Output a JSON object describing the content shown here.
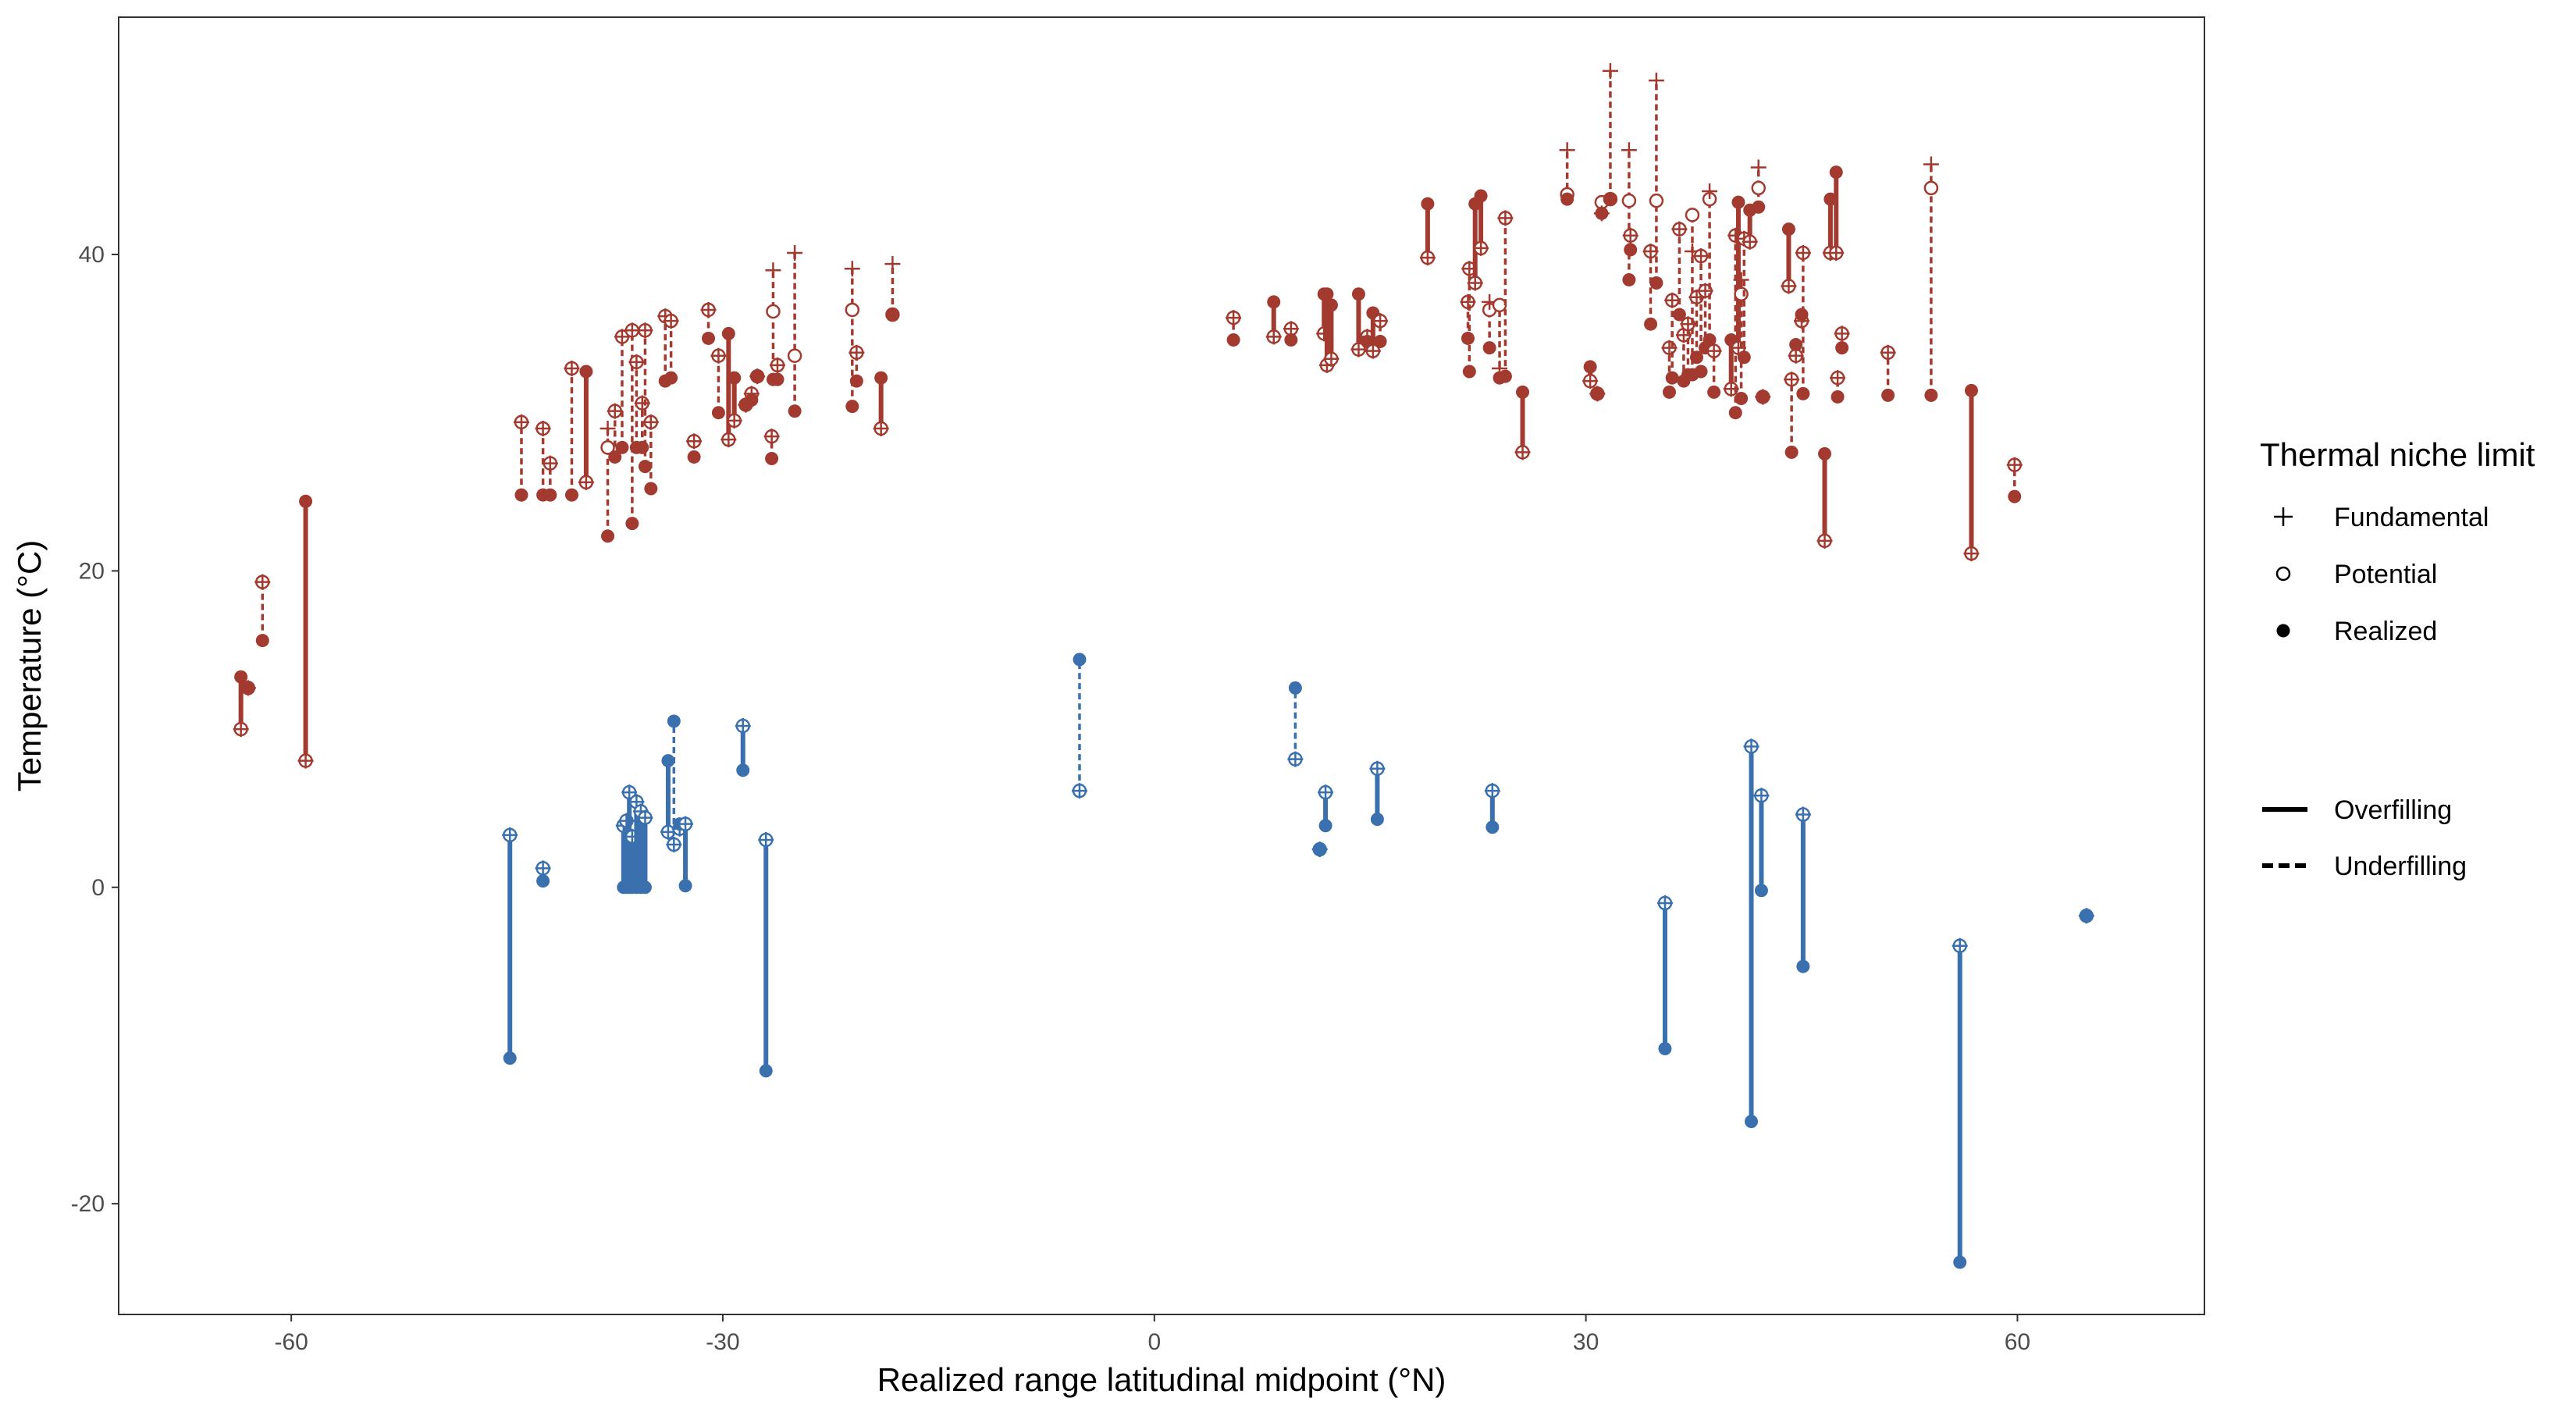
{
  "colors": {
    "warm": "#A33A30",
    "cold": "#3A70AE",
    "ink": "#000000",
    "tick": "#4d4d4d"
  },
  "chart_data": {
    "type": "scatter",
    "title": "",
    "xlabel": "Realized range latitudinal midpoint (°N)",
    "ylabel": "Temperature (°C)",
    "xlim": [
      -72,
      73
    ],
    "ylim": [
      -27,
      55
    ],
    "x_ticks": [
      -60,
      -30,
      0,
      30,
      60
    ],
    "y_ticks": [
      -20,
      0,
      20,
      40
    ],
    "x_tick_labels": [
      "-60",
      "-30",
      "0",
      "30",
      "60"
    ],
    "y_tick_labels": [
      "-20",
      "0",
      "20",
      "40"
    ],
    "grid": false,
    "legend_position": "right",
    "legend": {
      "title": "Thermal niche limit",
      "shape_items": [
        "Fundamental",
        "Potential",
        "Realized"
      ],
      "line_items": [
        "Overfilling",
        "Underfilling"
      ]
    },
    "series_note": "Each record: x = latitude midpoint; r = realized limit (°C); f = fundamental limit; p = potential limit; lim = warm (upper) or cold (lower) limit; fill = overfilling or underfilling.",
    "records": [
      {
        "x": -63.5,
        "r": 13.3,
        "f": 10.0,
        "p": 10.0,
        "lim": "warm",
        "fill": "overfilling"
      },
      {
        "x": -63.0,
        "r": 12.6,
        "f": 12.6,
        "p": 12.6,
        "lim": "warm",
        "fill": "underfilling"
      },
      {
        "x": -62.0,
        "r": 15.6,
        "f": 19.3,
        "p": 19.3,
        "lim": "warm",
        "fill": "underfilling"
      },
      {
        "x": -59.0,
        "r": 24.4,
        "f": 8.0,
        "p": 8.0,
        "lim": "warm",
        "fill": "overfilling"
      },
      {
        "x": -44.0,
        "r": 24.8,
        "f": 29.4,
        "p": 29.4,
        "lim": "warm",
        "fill": "underfilling"
      },
      {
        "x": -42.5,
        "r": 24.8,
        "f": 29.0,
        "p": 29.0,
        "lim": "warm",
        "fill": "underfilling"
      },
      {
        "x": -42.0,
        "r": 24.8,
        "f": 26.8,
        "p": 26.8,
        "lim": "warm",
        "fill": "underfilling"
      },
      {
        "x": -40.5,
        "r": 24.8,
        "f": 32.8,
        "p": 32.8,
        "lim": "warm",
        "fill": "underfilling"
      },
      {
        "x": -39.5,
        "r": 32.6,
        "f": 25.6,
        "p": 25.6,
        "lim": "warm",
        "fill": "overfilling"
      },
      {
        "x": -38.0,
        "r": 22.2,
        "f": 29.0,
        "p": 27.8,
        "lim": "warm",
        "fill": "underfilling"
      },
      {
        "x": -37.5,
        "r": 27.2,
        "f": 30.1,
        "p": 30.1,
        "lim": "warm",
        "fill": "underfilling"
      },
      {
        "x": -37.0,
        "r": 27.8,
        "f": 34.8,
        "p": 34.8,
        "lim": "warm",
        "fill": "underfilling"
      },
      {
        "x": -36.3,
        "r": 23.0,
        "f": 35.2,
        "p": 35.2,
        "lim": "warm",
        "fill": "underfilling"
      },
      {
        "x": -36.0,
        "r": 27.8,
        "f": 33.2,
        "p": 33.2,
        "lim": "warm",
        "fill": "underfilling"
      },
      {
        "x": -35.6,
        "r": 27.8,
        "f": 30.6,
        "p": 30.6,
        "lim": "warm",
        "fill": "underfilling"
      },
      {
        "x": -35.4,
        "r": 26.6,
        "f": 35.2,
        "p": 35.2,
        "lim": "warm",
        "fill": "underfilling"
      },
      {
        "x": -35.0,
        "r": 25.2,
        "f": 29.4,
        "p": 29.4,
        "lim": "warm",
        "fill": "underfilling"
      },
      {
        "x": -34.0,
        "r": 32.0,
        "f": 36.1,
        "p": 36.1,
        "lim": "warm",
        "fill": "underfilling"
      },
      {
        "x": -33.6,
        "r": 32.2,
        "f": 35.8,
        "p": 35.8,
        "lim": "warm",
        "fill": "underfilling"
      },
      {
        "x": -32.0,
        "r": 27.2,
        "f": 28.2,
        "p": 28.2,
        "lim": "warm",
        "fill": "underfilling"
      },
      {
        "x": -31.0,
        "r": 34.7,
        "f": 36.5,
        "p": 36.5,
        "lim": "warm",
        "fill": "underfilling"
      },
      {
        "x": -30.3,
        "r": 30.0,
        "f": 33.6,
        "p": 33.6,
        "lim": "warm",
        "fill": "underfilling"
      },
      {
        "x": -29.6,
        "r": 35.0,
        "f": 28.3,
        "p": 28.3,
        "lim": "warm",
        "fill": "overfilling"
      },
      {
        "x": -29.2,
        "r": 32.2,
        "f": 29.5,
        "p": 29.5,
        "lim": "warm",
        "fill": "overfilling"
      },
      {
        "x": -28.4,
        "r": 30.5,
        "f": 30.5,
        "p": 30.5,
        "lim": "warm",
        "fill": "underfilling"
      },
      {
        "x": -28.0,
        "r": 30.8,
        "f": 31.2,
        "p": 31.2,
        "lim": "warm",
        "fill": "underfilling"
      },
      {
        "x": -27.6,
        "r": 32.3,
        "f": 32.3,
        "p": 32.3,
        "lim": "warm",
        "fill": "underfilling"
      },
      {
        "x": -26.6,
        "r": 27.1,
        "f": 28.5,
        "p": 28.5,
        "lim": "warm",
        "fill": "underfilling"
      },
      {
        "x": -26.5,
        "r": 32.1,
        "f": 39.0,
        "p": 36.4,
        "lim": "warm",
        "fill": "underfilling"
      },
      {
        "x": -26.2,
        "r": 32.1,
        "f": 33.0,
        "p": 33.0,
        "lim": "warm",
        "fill": "underfilling"
      },
      {
        "x": -25.0,
        "r": 30.1,
        "f": 40.1,
        "p": 33.6,
        "lim": "warm",
        "fill": "underfilling"
      },
      {
        "x": -21.0,
        "r": 30.4,
        "f": 39.1,
        "p": 36.5,
        "lim": "warm",
        "fill": "underfilling"
      },
      {
        "x": -20.7,
        "r": 32.0,
        "f": 33.8,
        "p": 33.8,
        "lim": "warm",
        "fill": "underfilling"
      },
      {
        "x": -19.0,
        "r": 32.2,
        "f": 29.0,
        "p": 29.0,
        "lim": "warm",
        "fill": "overfilling"
      },
      {
        "x": -18.2,
        "r": 36.2,
        "f": 39.4,
        "p": 36.2,
        "lim": "warm",
        "fill": "underfilling"
      },
      {
        "x": 5.5,
        "r": 34.6,
        "f": 36.0,
        "p": 36.0,
        "lim": "warm",
        "fill": "underfilling"
      },
      {
        "x": 8.3,
        "r": 37.0,
        "f": 34.8,
        "p": 34.8,
        "lim": "warm",
        "fill": "overfilling"
      },
      {
        "x": 9.5,
        "r": 34.6,
        "f": 35.3,
        "p": 35.3,
        "lim": "warm",
        "fill": "underfilling"
      },
      {
        "x": 11.8,
        "r": 37.5,
        "f": 35.0,
        "p": 35.0,
        "lim": "warm",
        "fill": "overfilling"
      },
      {
        "x": 12.0,
        "r": 37.5,
        "f": 33.0,
        "p": 33.0,
        "lim": "warm",
        "fill": "overfilling"
      },
      {
        "x": 12.3,
        "r": 36.8,
        "f": 33.4,
        "p": 33.4,
        "lim": "warm",
        "fill": "overfilling"
      },
      {
        "x": 14.2,
        "r": 37.5,
        "f": 34.0,
        "p": 34.0,
        "lim": "warm",
        "fill": "overfilling"
      },
      {
        "x": 14.8,
        "r": 34.5,
        "f": 34.8,
        "p": 34.8,
        "lim": "warm",
        "fill": "underfilling"
      },
      {
        "x": 15.2,
        "r": 36.3,
        "f": 33.9,
        "p": 33.9,
        "lim": "warm",
        "fill": "overfilling"
      },
      {
        "x": 15.7,
        "r": 34.5,
        "f": 35.8,
        "p": 35.8,
        "lim": "warm",
        "fill": "underfilling"
      },
      {
        "x": 19.0,
        "r": 43.2,
        "f": 39.8,
        "p": 39.8,
        "lim": "warm",
        "fill": "overfilling"
      },
      {
        "x": 21.8,
        "r": 34.7,
        "f": 37.0,
        "p": 37.0,
        "lim": "warm",
        "fill": "underfilling"
      },
      {
        "x": 21.9,
        "r": 32.6,
        "f": 39.1,
        "p": 39.1,
        "lim": "warm",
        "fill": "underfilling"
      },
      {
        "x": 22.3,
        "r": 43.2,
        "f": 38.2,
        "p": 38.2,
        "lim": "warm",
        "fill": "overfilling"
      },
      {
        "x": 22.7,
        "r": 43.7,
        "f": 40.4,
        "p": 40.4,
        "lim": "warm",
        "fill": "overfilling"
      },
      {
        "x": 23.3,
        "r": 34.1,
        "f": 37.0,
        "p": 36.5,
        "lim": "warm",
        "fill": "underfilling"
      },
      {
        "x": 24.0,
        "r": 32.2,
        "f": 32.8,
        "p": 36.8,
        "lim": "warm",
        "fill": "underfilling"
      },
      {
        "x": 24.4,
        "r": 32.3,
        "f": 42.3,
        "p": 42.3,
        "lim": "warm",
        "fill": "underfilling"
      },
      {
        "x": 25.6,
        "r": 31.3,
        "f": 27.5,
        "p": 27.5,
        "lim": "warm",
        "fill": "overfilling"
      },
      {
        "x": 28.7,
        "r": 43.5,
        "f": 46.6,
        "p": 43.8,
        "lim": "warm",
        "fill": "underfilling"
      },
      {
        "x": 30.3,
        "r": 32.9,
        "f": 32.0,
        "p": 32.0,
        "lim": "warm",
        "fill": "overfilling"
      },
      {
        "x": 30.8,
        "r": 31.2,
        "f": 31.2,
        "p": 31.2,
        "lim": "warm",
        "fill": "underfilling"
      },
      {
        "x": 31.1,
        "r": 42.6,
        "f": 42.6,
        "p": 43.3,
        "lim": "warm",
        "fill": "underfilling"
      },
      {
        "x": 31.7,
        "r": 43.5,
        "f": 51.6,
        "p": 43.5,
        "lim": "warm",
        "fill": "underfilling"
      },
      {
        "x": 33.0,
        "r": 38.4,
        "f": 46.6,
        "p": 43.4,
        "lim": "warm",
        "fill": "underfilling"
      },
      {
        "x": 33.1,
        "r": 40.3,
        "f": 41.2,
        "p": 41.2,
        "lim": "warm",
        "fill": "underfilling"
      },
      {
        "x": 34.5,
        "r": 35.6,
        "f": 40.2,
        "p": 40.2,
        "lim": "warm",
        "fill": "underfilling"
      },
      {
        "x": 34.9,
        "r": 38.2,
        "f": 51.0,
        "p": 43.4,
        "lim": "warm",
        "fill": "underfilling"
      },
      {
        "x": 35.8,
        "r": 31.3,
        "f": 34.1,
        "p": 34.1,
        "lim": "warm",
        "fill": "underfilling"
      },
      {
        "x": 36.0,
        "r": 32.2,
        "f": 37.1,
        "p": 37.1,
        "lim": "warm",
        "fill": "underfilling"
      },
      {
        "x": 36.5,
        "r": 36.2,
        "f": 41.6,
        "p": 41.6,
        "lim": "warm",
        "fill": "underfilling"
      },
      {
        "x": 36.8,
        "r": 32.0,
        "f": 34.9,
        "p": 34.9,
        "lim": "warm",
        "fill": "underfilling"
      },
      {
        "x": 37.1,
        "r": 32.4,
        "f": 35.6,
        "p": 35.6,
        "lim": "warm",
        "fill": "underfilling"
      },
      {
        "x": 37.4,
        "r": 32.4,
        "f": 40.2,
        "p": 42.5,
        "lim": "warm",
        "fill": "underfilling"
      },
      {
        "x": 37.7,
        "r": 33.5,
        "f": 37.3,
        "p": 37.3,
        "lim": "warm",
        "fill": "underfilling"
      },
      {
        "x": 38.0,
        "r": 32.6,
        "f": 39.9,
        "p": 39.9,
        "lim": "warm",
        "fill": "underfilling"
      },
      {
        "x": 38.3,
        "r": 34.1,
        "f": 37.7,
        "p": 37.7,
        "lim": "warm",
        "fill": "underfilling"
      },
      {
        "x": 38.6,
        "r": 34.6,
        "f": 44.0,
        "p": 43.5,
        "lim": "warm",
        "fill": "underfilling"
      },
      {
        "x": 38.9,
        "r": 31.3,
        "f": 33.9,
        "p": 33.9,
        "lim": "warm",
        "fill": "underfilling"
      },
      {
        "x": 40.1,
        "r": 34.6,
        "f": 31.5,
        "p": 31.5,
        "lim": "warm",
        "fill": "overfilling"
      },
      {
        "x": 40.4,
        "r": 30.0,
        "f": 41.2,
        "p": 41.2,
        "lim": "warm",
        "fill": "underfilling"
      },
      {
        "x": 40.6,
        "r": 43.3,
        "f": 34.1,
        "p": 34.1,
        "lim": "warm",
        "fill": "overfilling"
      },
      {
        "x": 40.8,
        "r": 30.9,
        "f": 38.4,
        "p": 37.5,
        "lim": "warm",
        "fill": "underfilling"
      },
      {
        "x": 41.0,
        "r": 33.5,
        "f": 41.0,
        "p": 41.0,
        "lim": "warm",
        "fill": "underfilling"
      },
      {
        "x": 41.4,
        "r": 42.8,
        "f": 40.8,
        "p": 40.8,
        "lim": "warm",
        "fill": "overfilling"
      },
      {
        "x": 42.0,
        "r": 43.0,
        "f": 45.5,
        "p": 44.2,
        "lim": "warm",
        "fill": "underfilling"
      },
      {
        "x": 42.3,
        "r": 31.0,
        "f": 31.0,
        "p": 31.0,
        "lim": "warm",
        "fill": "underfilling"
      },
      {
        "x": 44.1,
        "r": 41.6,
        "f": 38.0,
        "p": 38.0,
        "lim": "warm",
        "fill": "overfilling"
      },
      {
        "x": 44.3,
        "r": 27.5,
        "f": 32.1,
        "p": 32.1,
        "lim": "warm",
        "fill": "underfilling"
      },
      {
        "x": 44.6,
        "r": 34.3,
        "f": 33.6,
        "p": 33.6,
        "lim": "warm",
        "fill": "overfilling"
      },
      {
        "x": 45.0,
        "r": 36.2,
        "f": 35.8,
        "p": 35.8,
        "lim": "warm",
        "fill": "overfilling"
      },
      {
        "x": 45.1,
        "r": 31.2,
        "f": 40.1,
        "p": 40.1,
        "lim": "warm",
        "fill": "underfilling"
      },
      {
        "x": 46.6,
        "r": 27.4,
        "f": 21.9,
        "p": 21.9,
        "lim": "warm",
        "fill": "overfilling"
      },
      {
        "x": 47.0,
        "r": 43.5,
        "f": 40.1,
        "p": 40.1,
        "lim": "warm",
        "fill": "overfilling"
      },
      {
        "x": 47.4,
        "r": 45.2,
        "f": 40.1,
        "p": 40.1,
        "lim": "warm",
        "fill": "overfilling"
      },
      {
        "x": 47.5,
        "r": 31.0,
        "f": 32.2,
        "p": 32.2,
        "lim": "warm",
        "fill": "underfilling"
      },
      {
        "x": 47.8,
        "r": 34.1,
        "f": 35.0,
        "p": 35.0,
        "lim": "warm",
        "fill": "underfilling"
      },
      {
        "x": 51.0,
        "r": 31.1,
        "f": 33.8,
        "p": 33.8,
        "lim": "warm",
        "fill": "underfilling"
      },
      {
        "x": 54.0,
        "r": 31.1,
        "f": 45.7,
        "p": 44.2,
        "lim": "warm",
        "fill": "underfilling"
      },
      {
        "x": 56.8,
        "r": 31.4,
        "f": 21.1,
        "p": 21.1,
        "lim": "warm",
        "fill": "overfilling"
      },
      {
        "x": 59.8,
        "r": 24.7,
        "f": 26.7,
        "p": 26.7,
        "lim": "warm",
        "fill": "underfilling"
      },
      {
        "x": -44.8,
        "r": -10.8,
        "f": 3.3,
        "p": 3.3,
        "lim": "cold",
        "fill": "overfilling"
      },
      {
        "x": -42.5,
        "r": 0.4,
        "f": 1.2,
        "p": 1.2,
        "lim": "cold",
        "fill": "overfilling"
      },
      {
        "x": -36.9,
        "r": 0.0,
        "f": 3.9,
        "p": 3.9,
        "lim": "cold",
        "fill": "overfilling"
      },
      {
        "x": -36.7,
        "r": 0.0,
        "f": 4.2,
        "p": 4.2,
        "lim": "cold",
        "fill": "overfilling"
      },
      {
        "x": -36.5,
        "r": 0.0,
        "f": 6.0,
        "p": 6.0,
        "lim": "cold",
        "fill": "overfilling"
      },
      {
        "x": -36.3,
        "r": 0.0,
        "f": 3.2,
        "p": 3.2,
        "lim": "cold",
        "fill": "overfilling"
      },
      {
        "x": -36.0,
        "r": 0.0,
        "f": 5.4,
        "p": 5.4,
        "lim": "cold",
        "fill": "overfilling"
      },
      {
        "x": -35.7,
        "r": 0.0,
        "f": 4.8,
        "p": 4.8,
        "lim": "cold",
        "fill": "overfilling"
      },
      {
        "x": -35.4,
        "r": 0.0,
        "f": 4.4,
        "p": 4.4,
        "lim": "cold",
        "fill": "overfilling"
      },
      {
        "x": -33.8,
        "r": 8.0,
        "f": 3.5,
        "p": 3.5,
        "lim": "cold",
        "fill": "overfilling"
      },
      {
        "x": -33.4,
        "r": 10.5,
        "f": 2.7,
        "p": 2.7,
        "lim": "cold",
        "fill": "underfilling"
      },
      {
        "x": -33.0,
        "r": 4.0,
        "f": 3.7,
        "p": 3.7,
        "lim": "cold",
        "fill": "overfilling"
      },
      {
        "x": -32.6,
        "r": 0.1,
        "f": 4.0,
        "p": 4.0,
        "lim": "cold",
        "fill": "overfilling"
      },
      {
        "x": -28.6,
        "r": 7.4,
        "f": 10.2,
        "p": 10.2,
        "lim": "cold",
        "fill": "overfilling"
      },
      {
        "x": -27.0,
        "r": -11.6,
        "f": 3.0,
        "p": 3.0,
        "lim": "cold",
        "fill": "overfilling"
      },
      {
        "x": -5.2,
        "r": 14.4,
        "f": 6.1,
        "p": 6.1,
        "lim": "cold",
        "fill": "underfilling"
      },
      {
        "x": 9.8,
        "r": 12.6,
        "f": 8.1,
        "p": 8.1,
        "lim": "cold",
        "fill": "underfilling"
      },
      {
        "x": 11.5,
        "r": 2.4,
        "f": 2.4,
        "p": 2.4,
        "lim": "cold",
        "fill": "overfilling"
      },
      {
        "x": 11.9,
        "r": 3.9,
        "f": 6.0,
        "p": 6.0,
        "lim": "cold",
        "fill": "overfilling"
      },
      {
        "x": 15.5,
        "r": 4.3,
        "f": 7.5,
        "p": 7.5,
        "lim": "cold",
        "fill": "overfilling"
      },
      {
        "x": 23.5,
        "r": 3.8,
        "f": 6.1,
        "p": 6.1,
        "lim": "cold",
        "fill": "overfilling"
      },
      {
        "x": 35.5,
        "r": -10.2,
        "f": -1.0,
        "p": -1.0,
        "lim": "cold",
        "fill": "overfilling"
      },
      {
        "x": 41.5,
        "r": -14.8,
        "f": 8.9,
        "p": 8.9,
        "lim": "cold",
        "fill": "overfilling"
      },
      {
        "x": 42.2,
        "r": -0.2,
        "f": 5.8,
        "p": 5.8,
        "lim": "cold",
        "fill": "overfilling"
      },
      {
        "x": 45.1,
        "r": -5.0,
        "f": 4.6,
        "p": 4.6,
        "lim": "cold",
        "fill": "overfilling"
      },
      {
        "x": 56.0,
        "r": -23.7,
        "f": -3.7,
        "p": -3.7,
        "lim": "cold",
        "fill": "overfilling"
      },
      {
        "x": 64.8,
        "r": -1.8,
        "f": -1.8,
        "p": -1.8,
        "lim": "cold",
        "fill": "underfilling"
      }
    ]
  }
}
